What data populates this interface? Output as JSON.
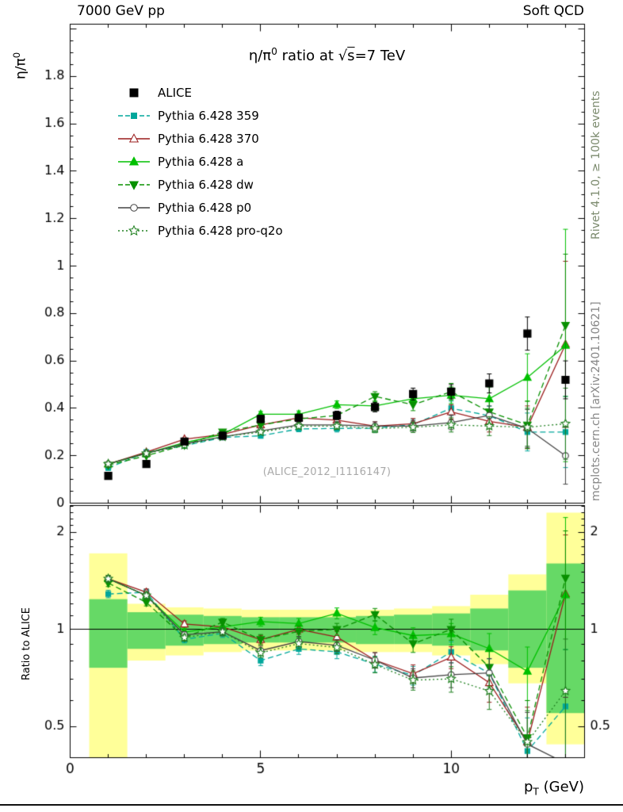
{
  "header": {
    "left": "7000 GeV pp",
    "right": "Soft QCD"
  },
  "side_notes": {
    "top_right": "Rivet 4.1.0, ≥ 100k events",
    "bottom_right": "mcplots.cern.ch [arXiv:2401.10621]"
  },
  "watermark": "(ALICE_2012_I1116147)",
  "title_parts": {
    "base": "η/π",
    "sup": "0",
    "mid": " ratio at √",
    "sqrt_arg": "s",
    "tail": "=7 TeV"
  },
  "labels": {
    "ylabel_main_base": "η/π",
    "ylabel_main_sup": "0",
    "ylabel_ratio": "Ratio to ALICE",
    "xlabel_base": "p",
    "xlabel_sub": "T",
    "xlabel_rest": " (GeV)"
  },
  "chart_data": {
    "type": "line",
    "title": "η/π⁰ ratio at √s=7 TeV",
    "xlabel": "p_T (GeV)",
    "xlim": [
      0,
      13.5
    ],
    "xticks": [
      0,
      5,
      10
    ],
    "x": [
      1,
      2,
      3,
      4,
      5,
      6,
      7,
      8,
      9,
      10,
      11,
      12,
      13
    ],
    "main_panel": {
      "ylabel": "η/π⁰",
      "ylim": [
        0,
        2.02
      ],
      "yticks": [
        0,
        0.2,
        0.4,
        0.6,
        0.8,
        1,
        1.2,
        1.4,
        1.6,
        1.8
      ],
      "yscale": "linear"
    },
    "ratio_panel": {
      "ylabel": "Ratio to ALICE",
      "ylim": [
        0.4,
        2.42
      ],
      "yticks": [
        0.5,
        1,
        2
      ],
      "yscale": "log"
    },
    "reference": {
      "name": "ALICE",
      "color": "#000000",
      "line": null,
      "marker": "square",
      "filled": true,
      "msize": 4.5,
      "values": [
        0.115,
        0.165,
        0.26,
        0.285,
        0.355,
        0.36,
        0.37,
        0.405,
        0.46,
        0.47,
        0.505,
        0.715,
        0.52
      ],
      "errors": [
        0.008,
        0.008,
        0.012,
        0.012,
        0.015,
        0.015,
        0.018,
        0.02,
        0.025,
        0.03,
        0.04,
        0.07,
        0.08
      ]
    },
    "series": [
      {
        "name": "Pythia 6.428 359",
        "color": "#00A79B",
        "line": "dashed",
        "marker": "square",
        "filled": true,
        "msize": 3,
        "values": [
          0.148,
          0.215,
          0.242,
          0.277,
          0.284,
          0.313,
          0.315,
          0.316,
          0.331,
          0.4,
          0.369,
          0.3,
          0.3
        ],
        "errors": [
          0.004,
          0.005,
          0.006,
          0.008,
          0.01,
          0.012,
          0.015,
          0.018,
          0.022,
          0.03,
          0.04,
          0.08,
          0.15
        ]
      },
      {
        "name": "Pythia 6.428 370",
        "color": "#9A1B1B",
        "line": "solid",
        "marker": "triangle-up",
        "filled": false,
        "msize": 4.5,
        "values": [
          0.165,
          0.215,
          0.27,
          0.29,
          0.33,
          0.36,
          0.35,
          0.325,
          0.335,
          0.385,
          0.345,
          0.32,
          0.67
        ],
        "errors": [
          0.004,
          0.005,
          0.006,
          0.008,
          0.01,
          0.012,
          0.015,
          0.018,
          0.022,
          0.03,
          0.045,
          0.09,
          0.35
        ]
      },
      {
        "name": "Pythia 6.428 a",
        "color": "#00C000",
        "line": "solid",
        "marker": "triangle-up",
        "filled": true,
        "msize": 4.5,
        "values": [
          0.165,
          0.21,
          0.255,
          0.29,
          0.375,
          0.375,
          0.415,
          0.41,
          0.44,
          0.455,
          0.44,
          0.53,
          0.665
        ],
        "errors": [
          0.004,
          0.005,
          0.006,
          0.008,
          0.012,
          0.014,
          0.016,
          0.02,
          0.025,
          0.035,
          0.05,
          0.1,
          0.49
        ]
      },
      {
        "name": "Pythia 6.428 dw",
        "color": "#089000",
        "line": "dashed",
        "marker": "triangle-down",
        "filled": true,
        "msize": 4.5,
        "values": [
          0.16,
          0.2,
          0.245,
          0.3,
          0.33,
          0.355,
          0.37,
          0.45,
          0.415,
          0.47,
          0.385,
          0.33,
          0.75
        ],
        "errors": [
          0.004,
          0.005,
          0.006,
          0.008,
          0.012,
          0.014,
          0.016,
          0.02,
          0.025,
          0.035,
          0.05,
          0.1,
          0.3
        ]
      },
      {
        "name": "Pythia 6.428 p0",
        "color": "#444444",
        "line": "solid",
        "marker": "circle",
        "filled": false,
        "msize": 3.8,
        "values": [
          0.165,
          0.21,
          0.25,
          0.28,
          0.305,
          0.33,
          0.33,
          0.325,
          0.325,
          0.34,
          0.37,
          0.315,
          0.2
        ],
        "errors": [
          0.004,
          0.005,
          0.006,
          0.008,
          0.01,
          0.012,
          0.014,
          0.018,
          0.022,
          0.03,
          0.04,
          0.08,
          0.12
        ]
      },
      {
        "name": "Pythia 6.428 pro-q2o",
        "color": "#208020",
        "line": "dotted",
        "marker": "star",
        "filled": false,
        "msize": 4.5,
        "values": [
          0.165,
          0.21,
          0.245,
          0.28,
          0.3,
          0.325,
          0.325,
          0.315,
          0.32,
          0.33,
          0.325,
          0.32,
          0.335
        ],
        "errors": [
          0.004,
          0.005,
          0.006,
          0.008,
          0.01,
          0.012,
          0.014,
          0.018,
          0.022,
          0.03,
          0.04,
          0.08,
          0.15
        ]
      }
    ],
    "uncertainty_bands": {
      "outer_color": "#FFFF99",
      "inner_color": "#66D966",
      "bins": [
        {
          "x0": 0.5,
          "x1": 1.5,
          "outer": [
            0.33,
            1.72
          ],
          "inner": [
            0.76,
            1.24
          ]
        },
        {
          "x0": 1.5,
          "x1": 2.5,
          "outer": [
            0.8,
            1.2
          ],
          "inner": [
            0.87,
            1.13
          ]
        },
        {
          "x0": 2.5,
          "x1": 3.5,
          "outer": [
            0.83,
            1.17
          ],
          "inner": [
            0.89,
            1.11
          ]
        },
        {
          "x0": 3.5,
          "x1": 4.5,
          "outer": [
            0.85,
            1.16
          ],
          "inner": [
            0.9,
            1.1
          ]
        },
        {
          "x0": 4.5,
          "x1": 5.5,
          "outer": [
            0.86,
            1.15
          ],
          "inner": [
            0.91,
            1.09
          ]
        },
        {
          "x0": 5.5,
          "x1": 6.5,
          "outer": [
            0.86,
            1.15
          ],
          "inner": [
            0.91,
            1.09
          ]
        },
        {
          "x0": 6.5,
          "x1": 7.5,
          "outer": [
            0.86,
            1.15
          ],
          "inner": [
            0.91,
            1.09
          ]
        },
        {
          "x0": 7.5,
          "x1": 8.5,
          "outer": [
            0.85,
            1.15
          ],
          "inner": [
            0.9,
            1.1
          ]
        },
        {
          "x0": 8.5,
          "x1": 9.5,
          "outer": [
            0.85,
            1.16
          ],
          "inner": [
            0.9,
            1.11
          ]
        },
        {
          "x0": 9.5,
          "x1": 10.5,
          "outer": [
            0.83,
            1.18
          ],
          "inner": [
            0.89,
            1.12
          ]
        },
        {
          "x0": 10.5,
          "x1": 11.5,
          "outer": [
            0.78,
            1.28
          ],
          "inner": [
            0.86,
            1.16
          ]
        },
        {
          "x0": 11.5,
          "x1": 12.5,
          "outer": [
            0.68,
            1.48
          ],
          "inner": [
            0.76,
            1.32
          ]
        },
        {
          "x0": 12.5,
          "x1": 13.5,
          "outer": [
            0.44,
            2.3
          ],
          "inner": [
            0.55,
            1.6
          ]
        }
      ]
    }
  }
}
